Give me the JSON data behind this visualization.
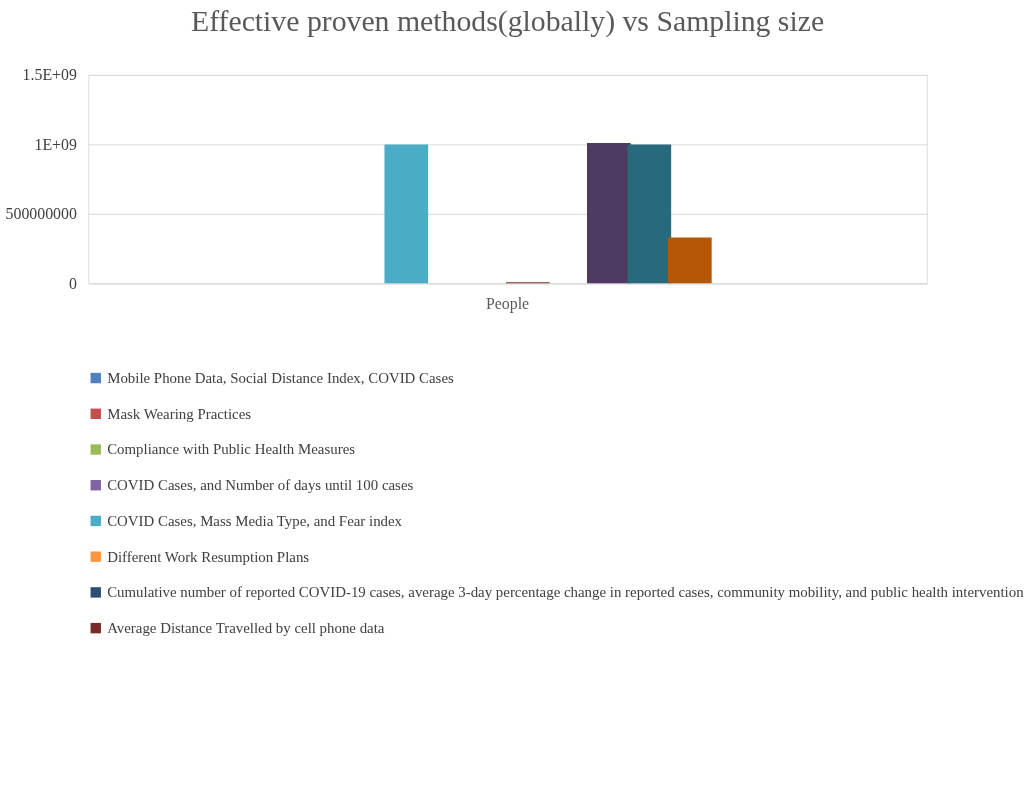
{
  "chart_data": {
    "type": "bar",
    "title": "Effective proven methods(globally) vs Sampling size",
    "categories": [
      "People"
    ],
    "series": [
      {
        "name": "Mobile Phone Data, Social Distance Index, COVID Cases",
        "color": "#4f81bd",
        "values": [
          null
        ]
      },
      {
        "name": "Mask Wearing Practices",
        "color": "#c0504d",
        "values": [
          null
        ]
      },
      {
        "name": "Compliance with Public Health Measures",
        "color": "#9bbb59",
        "values": [
          null
        ]
      },
      {
        "name": "COVID Cases, and Number of days until 100 cases",
        "color": "#8064a2",
        "values": [
          null
        ]
      },
      {
        "name": "COVID Cases, Mass Media Type, and Fear index",
        "color": "#4bacc6",
        "values": [
          1000000000
        ]
      },
      {
        "name": "Different Work Resumption Plans",
        "color": "#f79646",
        "values": [
          null
        ]
      },
      {
        "name": "Cumulative number of reported COVID-19 cases, average 3-day percentage change in reported cases, community mobility, and public health intervention",
        "color": "#2c4d75",
        "values": [
          null
        ]
      },
      {
        "name": "Average Distance Travelled by cell phone data",
        "color": "#772c2a",
        "values": [
          8000000
        ]
      },
      {
        "color": "#5f7530",
        "values": [
          null
        ]
      },
      {
        "color": "#4d3b62",
        "values": [
          1010000000
        ]
      },
      {
        "color": "#276a7c",
        "values": [
          1000000000
        ]
      },
      {
        "color": "#b65708",
        "values": [
          330000000
        ]
      },
      {
        "color": "#729aca",
        "values": [
          null
        ]
      },
      {
        "color": "#cd7371",
        "values": [
          null
        ]
      }
    ],
    "ylim": [
      0,
      1500000000
    ],
    "yticks": [
      0,
      500000000,
      {
        "value": 1000000000,
        "label": "1E+09"
      },
      {
        "value": 1500000000,
        "label": "1.5E+09"
      }
    ],
    "grid": "y",
    "legend": "bottom"
  }
}
